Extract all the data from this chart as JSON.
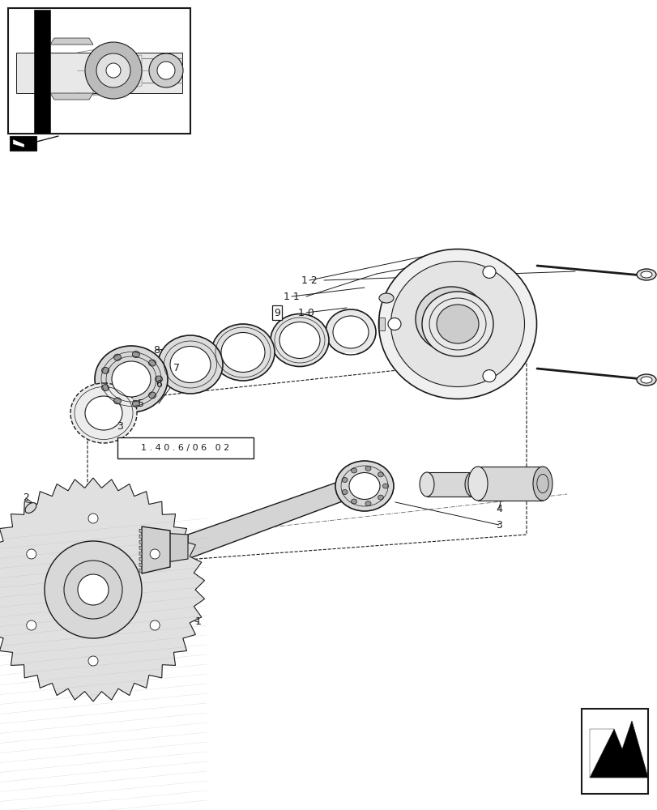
{
  "bg_color": "#ffffff",
  "line_color": "#1a1a1a",
  "fig_width": 8.12,
  "fig_height": 10.0,
  "dpi": 100,
  "ref_code": "1 . 4 0 . 6 / 0 6   0 2"
}
